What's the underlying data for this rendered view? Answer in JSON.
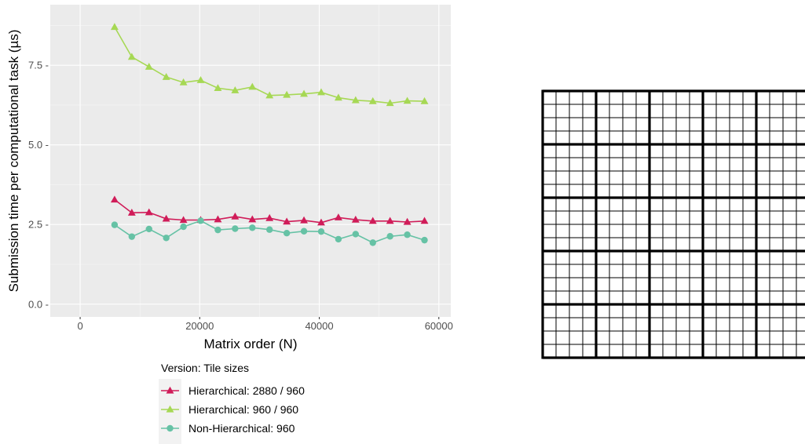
{
  "chart_data": {
    "type": "line",
    "xlabel": "Matrix order (N)",
    "ylabel": "Submission time per computational task (µs)",
    "xlim": [
      -5000,
      62000
    ],
    "ylim": [
      -0.4,
      9.4
    ],
    "x_ticks": [
      0,
      20000,
      40000,
      60000
    ],
    "x_tick_labels": [
      "0",
      "20000",
      "40000",
      "60000"
    ],
    "y_ticks": [
      0,
      2.5,
      5,
      7.5
    ],
    "y_tick_labels": [
      "0.0 -",
      "2.5 -",
      "5.0 -",
      "7.5 -"
    ],
    "grid": true,
    "legend_title": "Version: Tile sizes",
    "legend_position": "bottom",
    "x": [
      5760,
      8640,
      11520,
      14400,
      17280,
      20160,
      23040,
      25920,
      28800,
      31680,
      34560,
      37440,
      40320,
      43200,
      46080,
      48960,
      51840,
      54720,
      57600
    ],
    "series": [
      {
        "name": "Hierarchical: 2880 / 960",
        "color": "#d01c59",
        "marker": "triangle",
        "values": [
          3.28,
          2.87,
          2.88,
          2.68,
          2.64,
          2.64,
          2.66,
          2.75,
          2.66,
          2.7,
          2.59,
          2.63,
          2.56,
          2.72,
          2.65,
          2.61,
          2.61,
          2.58,
          2.61
        ]
      },
      {
        "name": "Hierarchical: 960 / 960",
        "color": "#a6d854",
        "marker": "triangle",
        "values": [
          8.7,
          7.76,
          7.45,
          7.13,
          6.96,
          7.03,
          6.78,
          6.71,
          6.82,
          6.55,
          6.57,
          6.6,
          6.65,
          6.48,
          6.4,
          6.37,
          6.31,
          6.38,
          6.37
        ]
      },
      {
        "name": "Non-Hierarchical: 960",
        "color": "#66c2a5",
        "marker": "circle",
        "values": [
          2.49,
          2.12,
          2.36,
          2.08,
          2.43,
          2.62,
          2.33,
          2.37,
          2.4,
          2.34,
          2.23,
          2.29,
          2.28,
          2.04,
          2.2,
          1.93,
          2.13,
          2.18,
          2.01
        ]
      }
    ]
  },
  "grid_diagram": {
    "major_blocks": 5,
    "subdivisions_per_block": 4
  }
}
